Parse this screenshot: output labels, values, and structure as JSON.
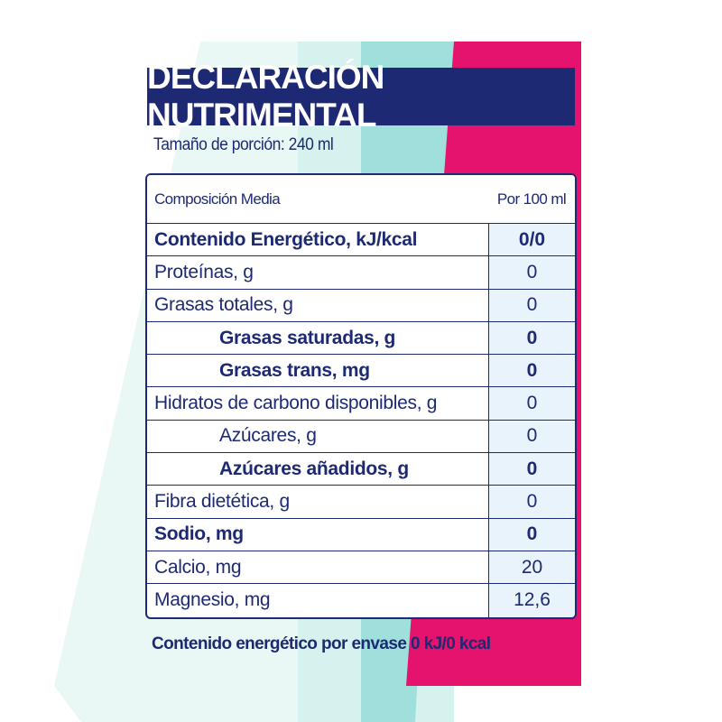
{
  "colors": {
    "navy": "#1d2a73",
    "magenta": "#e5136d",
    "aqua_light": "#d6f2ee",
    "aqua": "#6fd3d3",
    "value_column": "#e8f3fb"
  },
  "title": "DECLARACIÓN NUTRIMENTAL",
  "serving": "Tamaño de porción: 240 ml",
  "table": {
    "header": {
      "label": "Composición Media",
      "value": "Por 100 ml"
    },
    "rows": [
      {
        "label": "Contenido Energético, kJ/kcal",
        "value": "0/0",
        "bold": true,
        "indent": false
      },
      {
        "label": "Proteínas, g",
        "value": "0",
        "bold": false,
        "indent": false
      },
      {
        "label": "Grasas totales, g",
        "value": "0",
        "bold": false,
        "indent": false
      },
      {
        "label": "Grasas saturadas, g",
        "value": "0",
        "bold": true,
        "indent": true
      },
      {
        "label": "Grasas trans, mg",
        "value": "0",
        "bold": true,
        "indent": true
      },
      {
        "label": "Hidratos de carbono disponibles, g",
        "value": "0",
        "bold": false,
        "indent": false
      },
      {
        "label": "Azúcares, g",
        "value": "0",
        "bold": false,
        "indent": true
      },
      {
        "label": "Azúcares añadidos, g",
        "value": "0",
        "bold": true,
        "indent": true
      },
      {
        "label": "Fibra dietética, g",
        "value": "0",
        "bold": false,
        "indent": false
      },
      {
        "label": "Sodio, mg",
        "value": "0",
        "bold": true,
        "indent": false
      },
      {
        "label": "Calcio, mg",
        "value": "20",
        "bold": false,
        "indent": false
      },
      {
        "label": "Magnesio, mg",
        "value": "12,6",
        "bold": false,
        "indent": false
      }
    ]
  },
  "footer": "Contenido energético por envase 0 kJ/0 kcal"
}
